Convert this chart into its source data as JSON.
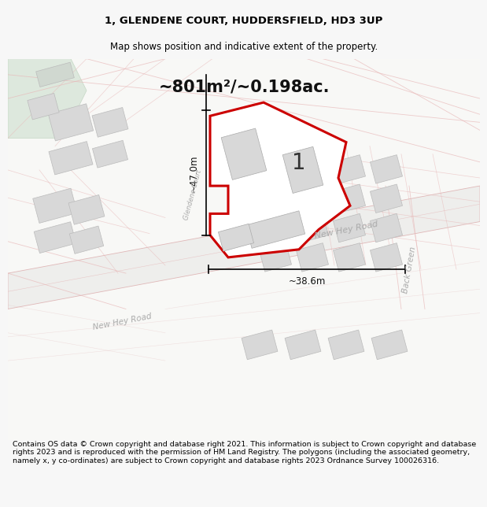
{
  "title_line1": "1, GLENDENE COURT, HUDDERSFIELD, HD3 3UP",
  "title_line2": "Map shows position and indicative extent of the property.",
  "area_text": "~801m²/~0.198ac.",
  "dim_width": "~38.6m",
  "dim_height": "~47.0m",
  "plot_number": "1",
  "footer_text": "Contains OS data © Crown copyright and database right 2021. This information is subject to Crown copyright and database rights 2023 and is reproduced with the permission of HM Land Registry. The polygons (including the associated geometry, namely x, y co-ordinates) are subject to Crown copyright and database rights 2023 Ordnance Survey 100026316.",
  "bg_color": "#f7f7f7",
  "map_bg": "#f5f3f0",
  "plot_fill": "#ffffff",
  "plot_edge": "#cc0000",
  "building_fill": "#d8d8d8",
  "building_edge": "#bbbbbb",
  "road_fill": "#ececec",
  "road_line": "#e8c0c0",
  "green_fill": "#dde8dd",
  "title_fontsize": 9.5,
  "footer_fontsize": 6.8,
  "road_label_color": "#aaaaaa",
  "dim_color": "#222222"
}
